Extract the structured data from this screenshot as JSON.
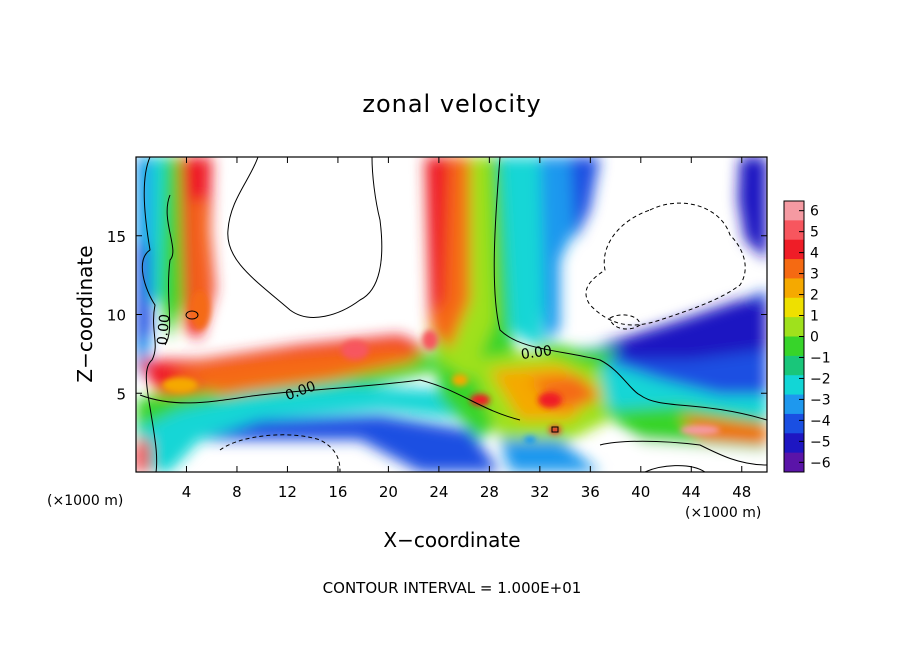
{
  "chart_data": {
    "type": "heatmap",
    "title": "zonal velocity",
    "xlabel": "X−coordinate",
    "ylabel": "Z−coordinate",
    "x_unit_left": "(×1000 m)",
    "x_unit_right": "(×1000 m)",
    "xlim": [
      0,
      50
    ],
    "ylim": [
      0,
      20
    ],
    "x_ticks": [
      4,
      8,
      12,
      16,
      20,
      24,
      28,
      32,
      36,
      40,
      44,
      48
    ],
    "y_ticks": [
      5,
      10,
      15
    ],
    "colorbar": {
      "ticks": [
        6,
        5,
        4,
        3,
        2,
        1,
        0,
        -1,
        -2,
        -3,
        -4,
        -5,
        -6
      ],
      "tick_labels": [
        "6",
        "5",
        "4",
        "3",
        "2",
        "1",
        "0",
        "−1",
        "−2",
        "−3",
        "−4",
        "−5",
        "−6"
      ],
      "colors": [
        "#f59aa2",
        "#f7565e",
        "#ef1d27",
        "#f56a12",
        "#f5a900",
        "#eee000",
        "#9fe11c",
        "#37d42a",
        "#19c67a",
        "#12d6d6",
        "#1e98ee",
        "#1a4fe2",
        "#1e16c2",
        "#5a14a8"
      ]
    },
    "contour_labels": [
      "0.00",
      "0.00",
      "0.00"
    ],
    "footer": "CONTOUR INTERVAL = 1.000E+01"
  }
}
